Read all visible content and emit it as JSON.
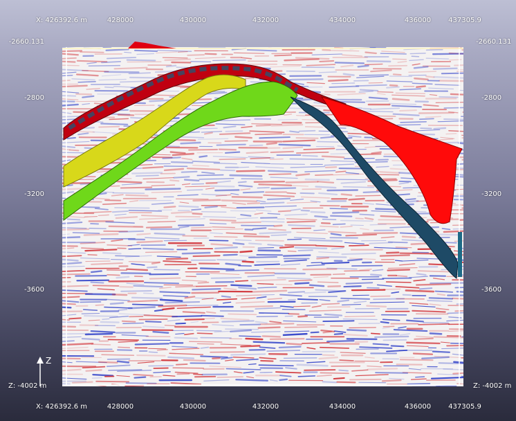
{
  "viewer": {
    "top_axis": {
      "start_label": "X: 426392.6 m",
      "ticks": [
        "428000",
        "430000",
        "432000",
        "434000",
        "436000"
      ],
      "end_label": "437305.9"
    },
    "bottom_axis": {
      "start_label": "X: 426392.6 m",
      "ticks": [
        "428000",
        "430000",
        "432000",
        "434000",
        "436000"
      ],
      "end_label": "437305.9"
    },
    "left_axis": {
      "top_label": "-2660.131",
      "ticks": [
        "-2800",
        "-3200",
        "-3600"
      ],
      "bottom_label": "Z: -4002 m"
    },
    "right_axis": {
      "top_label": "-2660.131",
      "ticks": [
        "-2800",
        "-3200",
        "-3600"
      ],
      "bottom_label": "Z: -4002 m"
    },
    "z_indicator_label": "Z",
    "colors": {
      "horizon_red": "#e00010",
      "horizon_yellow": "#d8d81a",
      "horizon_green": "#6fd81a",
      "fault_blue": "#1e4a66",
      "fault_red": "#ff0a0a",
      "seismic_positive": "#d0282e",
      "seismic_negative": "#2a3cc8"
    }
  }
}
